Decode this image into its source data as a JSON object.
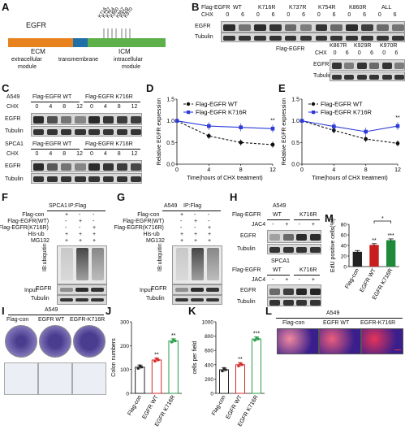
{
  "panel_letters": [
    "A",
    "B",
    "C",
    "D",
    "E",
    "F",
    "G",
    "H",
    "I",
    "J",
    "K",
    "L",
    "M"
  ],
  "A": {
    "protein": "EGFR",
    "ecm": "ECM",
    "tm": "TM",
    "icm": "ICM",
    "domain_labels": [
      "extracellular",
      "transmembrane",
      "intracellular"
    ],
    "module": "module",
    "sites": [
      "K716",
      "K737",
      "K754",
      "K860",
      "K867",
      "K929",
      "K970"
    ],
    "colors": {
      "ecm": "#e8821e",
      "tm": "#1f6fa8",
      "icm": "#5db04a"
    }
  },
  "B": {
    "flag": "Flag-EGFR",
    "cols": [
      "WT",
      "K716R",
      "K737R",
      "K754R",
      "K860R",
      "ALL"
    ],
    "cols2": [
      "K867R",
      "K929R",
      "K970R"
    ],
    "chx": "CHX",
    "times": [
      "0",
      "6"
    ],
    "rows": [
      "EGFR",
      "Tubulin"
    ]
  },
  "C": {
    "cell1": "A549",
    "cell2": "SPCA1",
    "wt": "Flag-EGFR WT",
    "mut": "Flag-EGFR K716R",
    "chx": "CHX",
    "times": [
      "0",
      "4",
      "8",
      "12"
    ],
    "rows": [
      "EGFR",
      "Tubulin"
    ]
  },
  "F": {
    "cell": "SPCA1",
    "ip": "IP:Flag",
    "conditions": [
      "Flag-con",
      "Flag-EGFR(WT)",
      "Flag-EGFR(K716R)",
      "His-ub",
      "MG132"
    ],
    "signs": [
      [
        "+",
        "-",
        "-"
      ],
      [
        "-",
        "+",
        "-"
      ],
      [
        "-",
        "-",
        "+"
      ],
      [
        "+",
        "+",
        "+"
      ],
      [
        "+",
        "+",
        "+"
      ]
    ],
    "ib": "IB:ubiquitin",
    "input": "Input",
    "rows": [
      "EGFR",
      "Tubulin"
    ]
  },
  "G": {
    "cell": "A549",
    "ip": "IP:Flag",
    "conditions": [
      "Flag-con",
      "Flag-EGFR(WT)",
      "Flag-EGFR(K716R)",
      "His-ub",
      "MG132"
    ],
    "signs": [
      [
        "+",
        "-",
        "-"
      ],
      [
        "-",
        "+",
        "-"
      ],
      [
        "-",
        "-",
        "+"
      ],
      [
        "+",
        "+",
        "+"
      ],
      [
        "+",
        "+",
        "+"
      ]
    ],
    "ib": "IB:ubiquitin",
    "input": "Input",
    "rows": [
      "EGFR",
      "Tubulin"
    ]
  },
  "H": {
    "cell1": "A549",
    "cell2": "SPCA1",
    "flag": "Flag-EGFR",
    "wt": "WT",
    "mut": "K716R",
    "jac4": "JAC4",
    "signs": [
      "-",
      "+",
      "-",
      "+"
    ],
    "rows": [
      "EGFR",
      "Tubulin"
    ]
  },
  "I": {
    "cell": "A549",
    "groups": [
      "Flag-con",
      "EGFR WT",
      "EGFR-K716R"
    ]
  },
  "L": {
    "cell": "A549",
    "groups": [
      "Flag-con",
      "EGFR WT",
      "EGFR-K716R"
    ]
  },
  "chart_data": [
    {
      "panel": "D",
      "type": "line",
      "xlabel": "Time(hours of CHX treatment)",
      "ylabel": "Relative EGFR expression",
      "x": [
        0,
        4,
        8,
        12
      ],
      "xlim": [
        0,
        12
      ],
      "ylim": [
        0,
        1.5
      ],
      "yticks": [
        0,
        0.5,
        1.0,
        1.5
      ],
      "xticks": [
        0,
        4,
        8,
        12
      ],
      "series": [
        {
          "name": "Flag-EGFR WT",
          "values": [
            1.0,
            0.65,
            0.5,
            0.45
          ],
          "color": "#111111",
          "dash": true
        },
        {
          "name": "Flag-EGFR K716R",
          "values": [
            1.0,
            0.88,
            0.85,
            0.82
          ],
          "color": "#2d3bd8",
          "dash": false
        }
      ],
      "annotation": "**",
      "legend": "top-right"
    },
    {
      "panel": "E",
      "type": "line",
      "xlabel": "Time(hours of CHX treatment)",
      "ylabel": "Relative EGFR expression",
      "x": [
        0,
        4,
        8,
        12
      ],
      "xlim": [
        0,
        12
      ],
      "ylim": [
        0,
        1.5
      ],
      "yticks": [
        0,
        0.5,
        1.0,
        1.5
      ],
      "xticks": [
        0,
        4,
        8,
        12
      ],
      "series": [
        {
          "name": "Flag-EGFR WT",
          "values": [
            1.0,
            0.78,
            0.58,
            0.48
          ],
          "color": "#111111",
          "dash": true
        },
        {
          "name": "Flag-EGFR K716R",
          "values": [
            1.0,
            0.87,
            0.75,
            0.88
          ],
          "color": "#2d3bd8",
          "dash": false
        }
      ],
      "annotation": "**",
      "legend": "top-right"
    },
    {
      "panel": "J",
      "type": "bar",
      "categories": [
        "Flag-con",
        "EGFR WT",
        "EGFR K716R"
      ],
      "values": [
        110,
        140,
        220
      ],
      "ylabel": "Colon numbers",
      "ylim": [
        0,
        300
      ],
      "yticks": [
        0,
        100,
        200,
        300
      ],
      "annotations": [
        "",
        "**",
        "**"
      ],
      "colors": [
        "#222222",
        "#d62828",
        "#2a9d4a"
      ]
    },
    {
      "panel": "K",
      "type": "bar",
      "categories": [
        "Flag-con",
        "EGFR WT",
        "EGFR K716R"
      ],
      "values": [
        330,
        400,
        760
      ],
      "ylabel": "cells per field",
      "ylim": [
        0,
        1000
      ],
      "yticks": [
        0,
        200,
        400,
        600,
        800,
        1000
      ],
      "annotations": [
        "",
        "**",
        "***"
      ],
      "colors": [
        "#222222",
        "#d62828",
        "#2a9d4a"
      ]
    },
    {
      "panel": "M",
      "type": "bar",
      "categories": [
        "Flag-con",
        "EGFR WT",
        "EGFR K716R"
      ],
      "values": [
        28,
        41,
        50
      ],
      "ylabel": "EdU positive cells(%)",
      "ylim": [
        0,
        80
      ],
      "yticks": [
        0,
        20,
        40,
        60,
        80
      ],
      "annotations": [
        "",
        "**",
        "***"
      ],
      "bracket": "*",
      "colors": [
        "#222222",
        "#c81e1e",
        "#1e8a3a"
      ]
    }
  ]
}
